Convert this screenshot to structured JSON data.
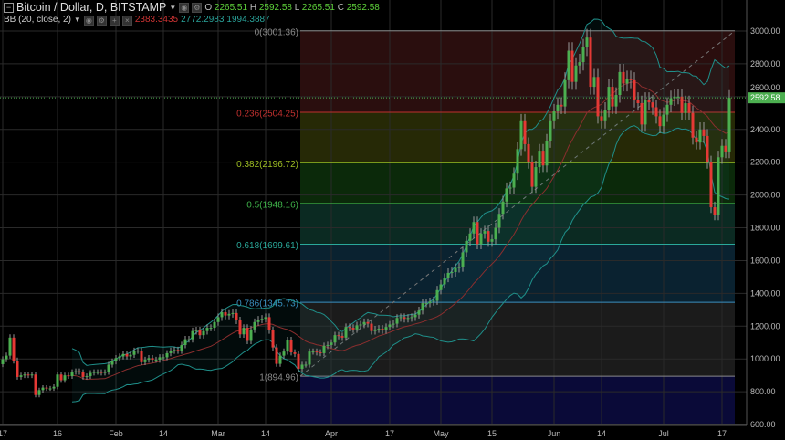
{
  "header": {
    "symbol_title": "Bitcoin / Dollar, D, BITSTAMP",
    "ohlc": [
      {
        "label": "O",
        "value": "2265.51"
      },
      {
        "label": "H",
        "value": "2592.58"
      },
      {
        "label": "L",
        "value": "2265.51"
      },
      {
        "label": "C",
        "value": "2592.58"
      }
    ]
  },
  "indicator": {
    "label": "BB (20, close, 2)",
    "values": {
      "basis": "2383.3435",
      "upper": "2772.2983",
      "lower": "1994.3887"
    },
    "period": 20,
    "mult": 2
  },
  "colors": {
    "up": "#4caf50",
    "down": "#e53935",
    "basis": "#8b2e2e",
    "band": "#1f8f8a",
    "bg": "#000000"
  },
  "chart_data": {
    "type": "candlestick",
    "ylim": [
      600,
      3000
    ],
    "y_ticks": [
      "3000.00",
      "2800.00",
      "2600.00",
      "2400.00",
      "2200.00",
      "2000.00",
      "1800.00",
      "1600.00",
      "1400.00",
      "1200.00",
      "1000.00",
      "800.00",
      "600.00"
    ],
    "x_ticks": [
      {
        "label": "17",
        "day": 0
      },
      {
        "label": "16",
        "day": 15
      },
      {
        "label": "Feb",
        "day": 31
      },
      {
        "label": "14",
        "day": 44
      },
      {
        "label": "Mar",
        "day": 59
      },
      {
        "label": "14",
        "day": 72
      },
      {
        "label": "Apr",
        "day": 90
      },
      {
        "label": "17",
        "day": 106
      },
      {
        "label": "May",
        "day": 120
      },
      {
        "label": "15",
        "day": 134
      },
      {
        "label": "Jun",
        "day": 151
      },
      {
        "label": "14",
        "day": 164
      },
      {
        "label": "Jul",
        "day": 181
      },
      {
        "label": "17",
        "day": 197
      }
    ],
    "first_open": 968,
    "closes": [
      998,
      1020,
      1130,
      990,
      890,
      900,
      905,
      900,
      905,
      780,
      810,
      825,
      820,
      820,
      830,
      905,
      870,
      900,
      895,
      920,
      925,
      920,
      890,
      895,
      915,
      920,
      920,
      915,
      920,
      965,
      985,
      1005,
      1015,
      1030,
      1015,
      1025,
      1050,
      1050,
      980,
      995,
      1005,
      995,
      995,
      1010,
      1010,
      1035,
      1050,
      1055,
      1050,
      1085,
      1120,
      1120,
      1170,
      1175,
      1145,
      1170,
      1190,
      1190,
      1225,
      1255,
      1285,
      1265,
      1275,
      1280,
      1235,
      1150,
      1190,
      1110,
      1180,
      1225,
      1240,
      1245,
      1255,
      1175,
      1070,
      970,
      1020,
      1045,
      1115,
      1040,
      1030,
      940,
      965,
      965,
      1045,
      1045,
      1040,
      1035,
      1080,
      1085,
      1100,
      1145,
      1140,
      1130,
      1195,
      1190,
      1180,
      1205,
      1210,
      1225,
      1215,
      1170,
      1180,
      1185,
      1175,
      1195,
      1210,
      1215,
      1250,
      1255,
      1245,
      1250,
      1255,
      1270,
      1295,
      1340,
      1340,
      1350,
      1355,
      1420,
      1455,
      1495,
      1525,
      1530,
      1555,
      1560,
      1650,
      1720,
      1765,
      1835,
      1700,
      1765,
      1780,
      1715,
      1730,
      1800,
      1885,
      1960,
      2040,
      2045,
      2130,
      2280,
      2450,
      2310,
      2200,
      2050,
      2170,
      2270,
      2180,
      2330,
      2450,
      2510,
      2550,
      2540,
      2700,
      2880,
      2690,
      2790,
      2810,
      2900,
      2960,
      2660,
      2720,
      2480,
      2450,
      2520,
      2660,
      2540,
      2610,
      2750,
      2680,
      2710,
      2700,
      2580,
      2560,
      2430,
      2580,
      2565,
      2535,
      2480,
      2420,
      2490,
      2550,
      2590,
      2600,
      2600,
      2500,
      2560,
      2500,
      2350,
      2320,
      2400,
      2360,
      2200,
      1925,
      1880,
      2230,
      2300,
      2265.51,
      2592.58
    ],
    "last_price": "2592.58",
    "fibonacci": {
      "start_day": 82,
      "end_day": 200,
      "levels": [
        {
          "ratio": 0,
          "label": "0(3001.36)",
          "price": 3001.36,
          "color": "#8a8a8a",
          "fill": "#2a0e0e"
        },
        {
          "ratio": 0.236,
          "label": "0.236(2504.25)",
          "price": 2504.25,
          "color": "#c0302e",
          "fill": "#262906"
        },
        {
          "ratio": 0.382,
          "label": "0.382(2196.72)",
          "price": 2196.72,
          "color": "#9fbf22",
          "fill": "#0b290a"
        },
        {
          "ratio": 0.5,
          "label": "0.5(1948.16)",
          "price": 1948.16,
          "color": "#3fb34a",
          "fill": "#0b2a22"
        },
        {
          "ratio": 0.618,
          "label": "0.618(1699.61)",
          "price": 1699.61,
          "color": "#2aa89a",
          "fill": "#0a2230"
        },
        {
          "ratio": 0.786,
          "label": "0.786(1345.73)",
          "price": 1345.73,
          "color": "#3a8fc0",
          "fill": "#1b1b1b"
        },
        {
          "ratio": 1,
          "label": "1(894.96)",
          "price": 894.96,
          "color": "#8a8a8a",
          "fill": "#0a0a38"
        }
      ]
    }
  }
}
